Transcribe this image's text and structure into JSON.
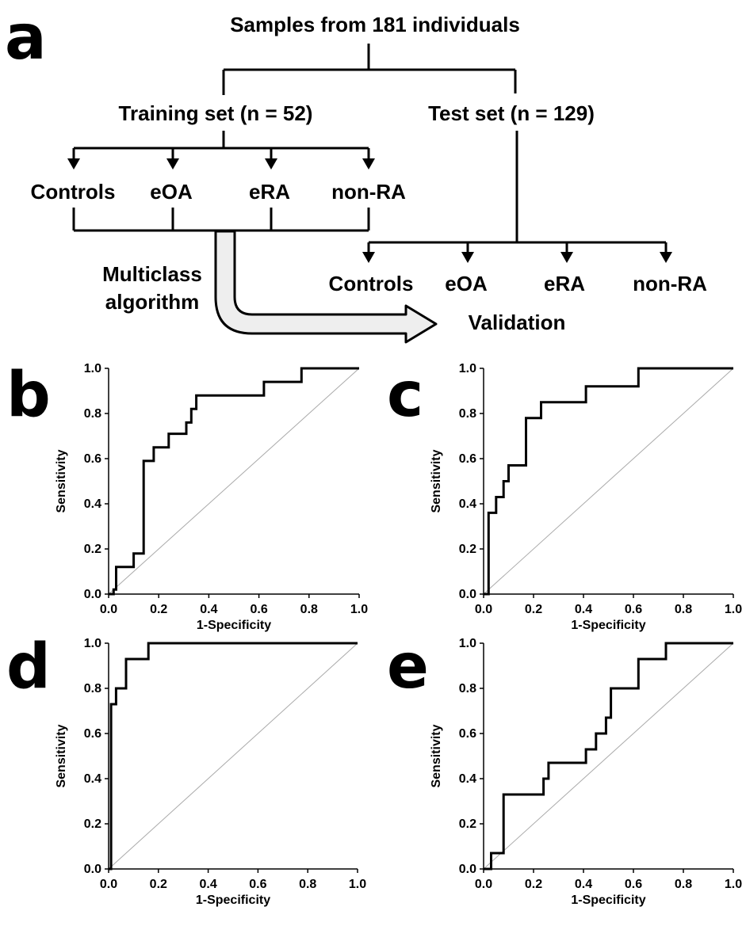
{
  "panel_a": {
    "letter": "a",
    "root": "Samples from 181 individuals",
    "training": "Training set (n = 52)",
    "test": "Test set (n = 129)",
    "training_groups": [
      "Controls",
      "eOA",
      "eRA",
      "non-RA"
    ],
    "test_groups": [
      "Controls",
      "eOA",
      "eRA",
      "non-RA"
    ],
    "algorithm": [
      "Multiclass",
      "algorithm"
    ],
    "validation": "Validation"
  },
  "chart_data": [
    {
      "panel": "b",
      "type": "line",
      "xlabel": "1-Specificity",
      "ylabel": "Sensitivity",
      "xlim": [
        0,
        1
      ],
      "ylim": [
        0,
        1
      ],
      "xticks": [
        "0.0",
        "0.2",
        "0.4",
        "0.6",
        "0.8",
        "1.0"
      ],
      "yticks": [
        "0.0",
        "0.2",
        "0.4",
        "0.6",
        "0.8",
        "1.0"
      ],
      "diagonal": true,
      "roc": [
        [
          0,
          0
        ],
        [
          0.02,
          0
        ],
        [
          0.02,
          0.02
        ],
        [
          0.03,
          0.02
        ],
        [
          0.03,
          0.12
        ],
        [
          0.1,
          0.12
        ],
        [
          0.1,
          0.18
        ],
        [
          0.14,
          0.18
        ],
        [
          0.14,
          0.59
        ],
        [
          0.18,
          0.59
        ],
        [
          0.18,
          0.65
        ],
        [
          0.24,
          0.65
        ],
        [
          0.24,
          0.71
        ],
        [
          0.31,
          0.71
        ],
        [
          0.31,
          0.76
        ],
        [
          0.33,
          0.76
        ],
        [
          0.33,
          0.82
        ],
        [
          0.35,
          0.82
        ],
        [
          0.35,
          0.88
        ],
        [
          0.62,
          0.88
        ],
        [
          0.62,
          0.94
        ],
        [
          0.77,
          0.94
        ],
        [
          0.77,
          1.0
        ],
        [
          1.0,
          1.0
        ]
      ]
    },
    {
      "panel": "c",
      "type": "line",
      "xlabel": "1-Specificity",
      "ylabel": "Sensitivity",
      "xlim": [
        0,
        1
      ],
      "ylim": [
        0,
        1
      ],
      "xticks": [
        "0.0",
        "0.2",
        "0.4",
        "0.6",
        "0.8",
        "1.0"
      ],
      "yticks": [
        "0.0",
        "0.2",
        "0.4",
        "0.6",
        "0.8",
        "1.0"
      ],
      "diagonal": true,
      "roc": [
        [
          0,
          0
        ],
        [
          0.02,
          0
        ],
        [
          0.02,
          0.36
        ],
        [
          0.05,
          0.36
        ],
        [
          0.05,
          0.43
        ],
        [
          0.08,
          0.43
        ],
        [
          0.08,
          0.5
        ],
        [
          0.1,
          0.5
        ],
        [
          0.1,
          0.57
        ],
        [
          0.17,
          0.57
        ],
        [
          0.17,
          0.78
        ],
        [
          0.23,
          0.78
        ],
        [
          0.23,
          0.85
        ],
        [
          0.41,
          0.85
        ],
        [
          0.41,
          0.92
        ],
        [
          0.62,
          0.92
        ],
        [
          0.62,
          1.0
        ],
        [
          1.0,
          1.0
        ]
      ]
    },
    {
      "panel": "d",
      "type": "line",
      "xlabel": "1-Specificity",
      "ylabel": "Sensitivity",
      "xlim": [
        0,
        1
      ],
      "ylim": [
        0,
        1
      ],
      "xticks": [
        "0.0",
        "0.2",
        "0.4",
        "0.6",
        "0.8",
        "1.0"
      ],
      "yticks": [
        "0.0",
        "0.2",
        "0.4",
        "0.6",
        "0.8",
        "1.0"
      ],
      "diagonal": true,
      "roc": [
        [
          0,
          0
        ],
        [
          0.01,
          0
        ],
        [
          0.01,
          0.73
        ],
        [
          0.03,
          0.73
        ],
        [
          0.03,
          0.8
        ],
        [
          0.07,
          0.8
        ],
        [
          0.07,
          0.93
        ],
        [
          0.16,
          0.93
        ],
        [
          0.16,
          1.0
        ],
        [
          1.0,
          1.0
        ]
      ]
    },
    {
      "panel": "e",
      "type": "line",
      "xlabel": "1-Specificity",
      "ylabel": "Sensitivity",
      "xlim": [
        0,
        1
      ],
      "ylim": [
        0,
        1
      ],
      "xticks": [
        "0.0",
        "0.2",
        "0.4",
        "0.6",
        "0.8",
        "1.0"
      ],
      "yticks": [
        "0.0",
        "0.2",
        "0.4",
        "0.6",
        "0.8",
        "1.0"
      ],
      "diagonal": true,
      "roc": [
        [
          0,
          0
        ],
        [
          0.03,
          0
        ],
        [
          0.03,
          0.07
        ],
        [
          0.08,
          0.07
        ],
        [
          0.08,
          0.33
        ],
        [
          0.24,
          0.33
        ],
        [
          0.24,
          0.4
        ],
        [
          0.26,
          0.4
        ],
        [
          0.26,
          0.47
        ],
        [
          0.41,
          0.47
        ],
        [
          0.41,
          0.53
        ],
        [
          0.45,
          0.53
        ],
        [
          0.45,
          0.6
        ],
        [
          0.49,
          0.6
        ],
        [
          0.49,
          0.67
        ],
        [
          0.51,
          0.67
        ],
        [
          0.51,
          0.8
        ],
        [
          0.62,
          0.8
        ],
        [
          0.62,
          0.93
        ],
        [
          0.73,
          0.93
        ],
        [
          0.73,
          1.0
        ],
        [
          1.0,
          1.0
        ]
      ]
    }
  ]
}
